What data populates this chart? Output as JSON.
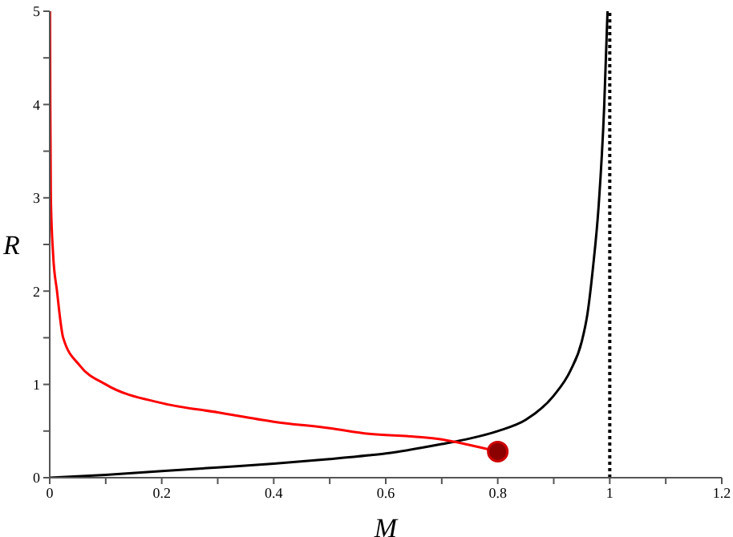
{
  "chart_data": {
    "type": "line",
    "xlabel": "M",
    "ylabel": "R",
    "xlim": [
      0,
      1.2
    ],
    "ylim": [
      0,
      5
    ],
    "xticks": [
      0,
      {
        "value": 0.1,
        "label": null
      },
      0.2,
      {
        "value": 0.3,
        "label": null
      },
      0.4,
      {
        "value": 0.5,
        "label": null
      },
      0.6,
      {
        "value": 0.7,
        "label": null
      },
      0.8,
      {
        "value": 0.9,
        "label": null
      },
      1,
      {
        "value": 1.1,
        "label": null
      },
      1.2
    ],
    "yticks": [
      0,
      {
        "value": 0.5,
        "label": null
      },
      1,
      {
        "value": 1.5,
        "label": null
      },
      2,
      {
        "value": 2.5,
        "label": null
      },
      3,
      {
        "value": 3.5,
        "label": null
      },
      4,
      {
        "value": 4.5,
        "label": null
      },
      5
    ],
    "grid": false,
    "marker": "none",
    "line_style": "solid",
    "series": [
      {
        "color": "#000000",
        "x": [
          0,
          0.1,
          0.2,
          0.3,
          0.4,
          0.5,
          0.57,
          0.6,
          0.7,
          0.75,
          0.8,
          0.85,
          0.9,
          0.93,
          0.95,
          0.96,
          0.97,
          0.98,
          0.99,
          0.996
        ],
        "values": [
          0,
          0.03,
          0.07,
          0.11,
          0.15,
          0.2,
          0.24,
          0.26,
          0.36,
          0.42,
          0.5,
          0.62,
          0.88,
          1.15,
          1.46,
          1.75,
          2.25,
          2.9,
          3.97,
          5
        ]
      },
      {
        "color": "#ff0000",
        "x": [
          0.0005,
          0.001,
          0.002,
          0.006,
          0.013,
          0.024,
          0.054,
          0.1,
          0.2,
          0.3,
          0.4,
          0.5,
          0.57,
          0.65,
          0.7,
          0.75,
          0.8
        ],
        "values": [
          5,
          4,
          3,
          2.4,
          2,
          1.5,
          1.2,
          1,
          0.8,
          0.7,
          0.6,
          0.53,
          0.47,
          0.44,
          0.41,
          0.35,
          0.28
        ]
      },
      {
        "type": "scatter",
        "color": "#8b0000",
        "marker": "circle",
        "x": [
          0.8
        ],
        "values": [
          0.28
        ]
      }
    ],
    "ref_lines": [
      {
        "axis": "x",
        "value": 1,
        "line_style": "dotted",
        "color": "#000000"
      }
    ]
  }
}
